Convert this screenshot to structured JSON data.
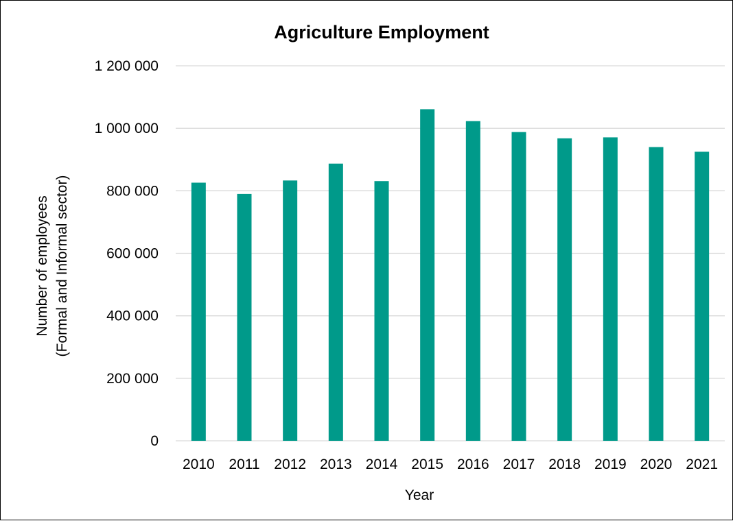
{
  "chart_data": {
    "type": "bar",
    "title": "Agriculture Employment",
    "xlabel": "Year",
    "ylabel_lines": [
      "Number of employees",
      "(Formal and Informal sector)"
    ],
    "categories": [
      "2010",
      "2011",
      "2012",
      "2013",
      "2014",
      "2015",
      "2016",
      "2017",
      "2018",
      "2019",
      "2020",
      "2021"
    ],
    "values": [
      826000,
      790000,
      833000,
      887000,
      831000,
      1061000,
      1023000,
      988000,
      968000,
      971000,
      940000,
      925000
    ],
    "ylim": [
      0,
      1200000
    ],
    "yticks": [
      0,
      200000,
      400000,
      600000,
      800000,
      1000000,
      1200000
    ],
    "ytick_labels": [
      "0",
      "200 000",
      "400 000",
      "600 000",
      "800 000",
      "1 000 000",
      "1 200 000"
    ],
    "grid": true,
    "bar_color": "#009a8a",
    "grid_color": "#d9d9d9"
  }
}
